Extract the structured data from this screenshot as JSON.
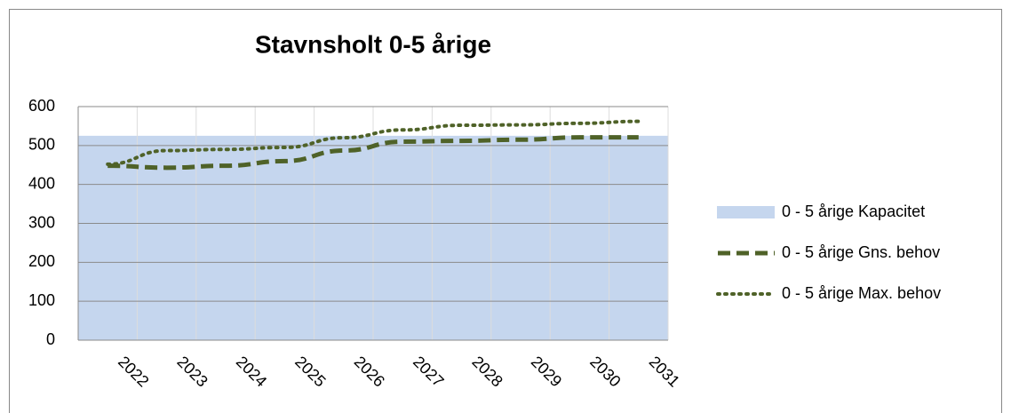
{
  "chart_data": {
    "type": "line",
    "title": "Stavnsholt 0-5 årige",
    "categories": [
      "2022",
      "2023",
      "2024",
      "2025",
      "2026",
      "2027",
      "2028",
      "2029",
      "2030",
      "2031"
    ],
    "series": [
      {
        "name": "0 - 5 årige Kapacitet",
        "kind": "area",
        "color": "#c5d6ee",
        "values": [
          525,
          525,
          525,
          525,
          525,
          525,
          525,
          525,
          525,
          525
        ]
      },
      {
        "name": "0 - 5 årige Gns. behov",
        "kind": "dashed",
        "color": "#4f6228",
        "values": [
          448,
          443,
          448,
          460,
          487,
          510,
          512,
          515,
          521,
          521
        ]
      },
      {
        "name": "0 - 5 årige Max. behov",
        "kind": "dotted",
        "color": "#4f6228",
        "values": [
          452,
          487,
          490,
          495,
          520,
          540,
          552,
          553,
          557,
          562
        ]
      }
    ],
    "ylim": [
      0,
      600
    ],
    "yticks": [
      0,
      100,
      200,
      300,
      400,
      500,
      600
    ],
    "grid": true,
    "legend": "right"
  }
}
